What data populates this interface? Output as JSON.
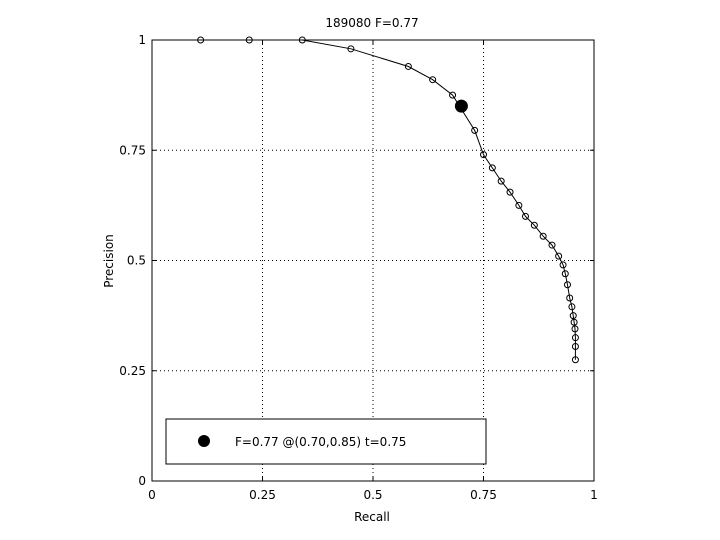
{
  "chart_data": {
    "type": "line",
    "title": "189080 F=0.77",
    "xlabel": "Recall",
    "ylabel": "Precision",
    "xlim": [
      0,
      1
    ],
    "ylim": [
      0,
      1
    ],
    "grid": "dotted",
    "xticks": [
      "0",
      "0.25",
      "0.5",
      "0.75",
      "1"
    ],
    "yticks": [
      "0",
      "0.25",
      "0.5",
      "0.75",
      "1"
    ],
    "series": [
      {
        "x": [
          0.11,
          0.22,
          0.34,
          0.45,
          0.58,
          0.635,
          0.68,
          0.73,
          0.75,
          0.77,
          0.79,
          0.81,
          0.83,
          0.845,
          0.865,
          0.885,
          0.905,
          0.92,
          0.93,
          0.935,
          0.94,
          0.945,
          0.95,
          0.953,
          0.955,
          0.957,
          0.958,
          0.958,
          0.958
        ],
        "y": [
          1.0,
          1.0,
          1.0,
          0.98,
          0.94,
          0.91,
          0.875,
          0.795,
          0.74,
          0.71,
          0.68,
          0.655,
          0.625,
          0.6,
          0.58,
          0.555,
          0.535,
          0.51,
          0.49,
          0.47,
          0.445,
          0.415,
          0.395,
          0.375,
          0.36,
          0.345,
          0.325,
          0.305,
          0.275
        ],
        "marker": "open-circle"
      }
    ],
    "best_point": {
      "x": 0.7,
      "y": 0.85,
      "marker": "filled-circle"
    },
    "legend": {
      "position": "bottom",
      "label": "F=0.77 @(0.70,0.85) t=0.75"
    }
  }
}
